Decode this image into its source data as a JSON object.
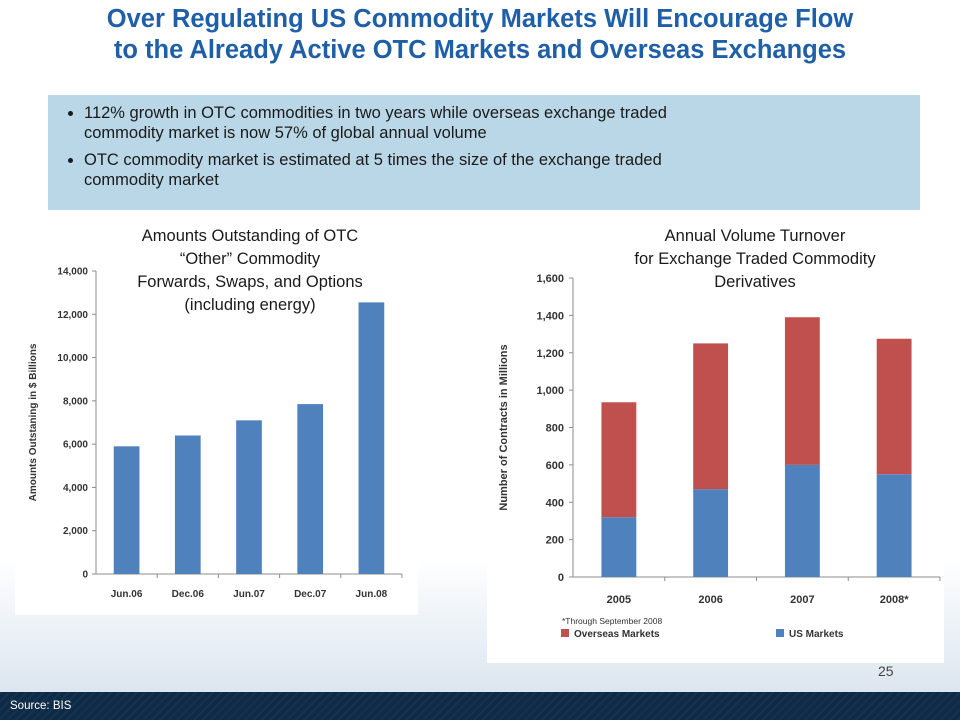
{
  "slide": {
    "title_line1": "Over Regulating US Commodity Markets Will Encourage Flow",
    "title_line2": "to the Already Active OTC Markets and Overseas Exchanges",
    "bullets": [
      {
        "line1": "112% growth in OTC commodities in two years while overseas exchange traded",
        "line2": "commodity market is now 57% of global annual volume"
      },
      {
        "line1": "OTC commodity market is estimated at 5 times the size of the exchange traded",
        "line2": "commodity market"
      }
    ],
    "page_number": "25",
    "source": "Source:  BIS",
    "colors": {
      "title": "#1f5fa8",
      "bullet_box": "#b9d7e6",
      "footer": "#0d2a46"
    }
  },
  "chart_data": [
    {
      "type": "bar",
      "title_lines": [
        "Amounts Outstanding of OTC",
        "“Other” Commodity",
        "Forwards, Swaps, and Options",
        "(including energy)"
      ],
      "ylabel": "Amounts Outstaning in $ Billions",
      "xlabel": "",
      "categories": [
        "Jun.06",
        "Dec.06",
        "Jun.07",
        "Dec.07",
        "Jun.08"
      ],
      "values": [
        5900,
        6400,
        7100,
        7850,
        12550
      ],
      "ylim": [
        0,
        14000
      ],
      "yticks": [
        "0",
        "2,000",
        "4,000",
        "6,000",
        "8,000",
        "10,000",
        "12,000",
        "14,000"
      ],
      "ytick_values": [
        0,
        2000,
        4000,
        6000,
        8000,
        10000,
        12000,
        14000
      ],
      "color": "#4f81bd",
      "grid": false
    },
    {
      "type": "bar",
      "stacked": true,
      "title_lines": [
        "Annual Volume Turnover",
        "for Exchange Traded Commodity",
        "Derivatives"
      ],
      "ylabel": "Number of Contracts in Millions",
      "xlabel": "",
      "categories": [
        "2005",
        "2006",
        "2007",
        "2008*"
      ],
      "series": [
        {
          "name": "US Markets",
          "color": "#4f81bd",
          "values": [
            320,
            470,
            600,
            550
          ]
        },
        {
          "name": "Overseas Markets",
          "color": "#c0504d",
          "values": [
            615,
            780,
            790,
            725
          ]
        }
      ],
      "ylim": [
        0,
        1600
      ],
      "yticks": [
        "0",
        "200",
        "400",
        "600",
        "800",
        "1,000",
        "1,200",
        "1,400",
        "1,600"
      ],
      "ytick_values": [
        0,
        200,
        400,
        600,
        800,
        1000,
        1200,
        1400,
        1600
      ],
      "legend": [
        {
          "label": "Overseas Markets",
          "color": "#c0504d"
        },
        {
          "label": "US Markets",
          "color": "#4f81bd"
        }
      ],
      "legend_position": "bottom",
      "note": "*Through September 2008",
      "grid": false
    }
  ]
}
